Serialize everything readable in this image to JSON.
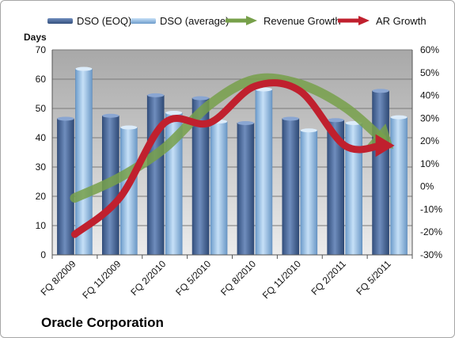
{
  "chart_data": {
    "type": "bar",
    "title": "Oracle Corporation",
    "ylabel": "Days",
    "categories": [
      "FQ 8/2009",
      "FQ 11/2009",
      "FQ 2/2010",
      "FQ 5/2010",
      "FQ 8/2010",
      "FQ 11/2010",
      "FQ 2/2011",
      "FQ 5/2011"
    ],
    "ylim": [
      0,
      70
    ],
    "yticks": [
      0,
      10,
      20,
      30,
      40,
      50,
      60,
      70
    ],
    "y2lim": [
      -30,
      60
    ],
    "y2ticks": [
      "-30%",
      "-20%",
      "-10%",
      "0%",
      "10%",
      "20%",
      "30%",
      "40%",
      "50%",
      "60%"
    ],
    "series": [
      {
        "name": "DSO (EOQ)",
        "type": "bar",
        "axis": "left",
        "values": [
          46.5,
          47.5,
          54.5,
          53.5,
          45,
          46.5,
          46,
          56
        ],
        "color": "#4f6c9c"
      },
      {
        "name": "DSO (average)",
        "type": "bar",
        "axis": "left",
        "values": [
          63.5,
          43.5,
          48.5,
          45.5,
          56.5,
          42.5,
          45,
          47
        ],
        "color": "#9cc2e5"
      },
      {
        "name": "Revenue Growth",
        "type": "line-arrow",
        "axis": "right",
        "values": [
          -5,
          4,
          17,
          36,
          47,
          45,
          35,
          18
        ],
        "color": "#77a04a"
      },
      {
        "name": "AR Growth",
        "type": "line-arrow",
        "axis": "right",
        "values": [
          -21,
          -5,
          28,
          28,
          44,
          42,
          18,
          18
        ],
        "color": "#c0202e"
      }
    ],
    "grid": true,
    "legend": "top"
  }
}
